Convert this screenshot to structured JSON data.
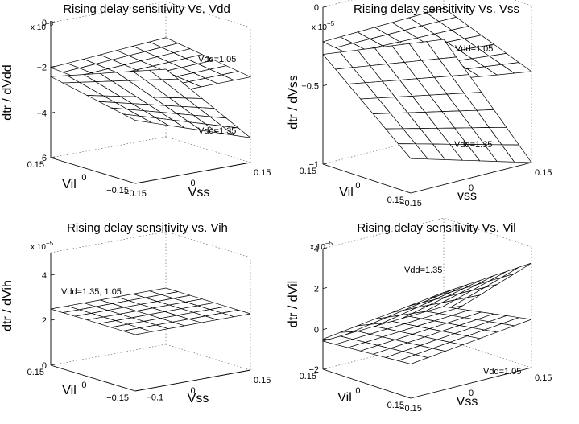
{
  "chart_data": [
    {
      "type": "surface",
      "title": "Rising delay sensitivity Vs. Vdd",
      "xlabel": "Vss",
      "ylabel": "Vil",
      "zlabel": "dtr / dVdd",
      "exponent_base": "x 10",
      "exponent_power": "−5",
      "xticks": [
        "−0.15",
        "0",
        "0.15"
      ],
      "yticks": [
        "0.15",
        "0",
        "−0.15"
      ],
      "zticks": [
        "0",
        "−2",
        "−4",
        "−6"
      ],
      "xlim": [
        -0.15,
        0.15
      ],
      "ylim": [
        -0.15,
        0.15
      ],
      "zlim": [
        -6,
        0
      ],
      "grid": true,
      "annotations": [
        "Vdd=1.05",
        "Vdd=1.35"
      ],
      "surfaces": [
        {
          "label": "Vdd=1.05",
          "corner_values": {
            "vss_lo_vil_hi": -2.0,
            "vss_hi_vil_hi": -1.6,
            "vss_lo_vil_lo": -2.3,
            "vss_hi_vil_lo": -2.2
          }
        },
        {
          "label": "Vdd=1.35",
          "corner_values": {
            "vss_lo_vil_hi": -2.4,
            "vss_hi_vil_hi": -3.0,
            "vss_lo_vil_lo": -3.2,
            "vss_hi_vil_lo": -4.9
          }
        }
      ]
    },
    {
      "type": "surface",
      "title": "Rising delay sensitivity Vs. Vss",
      "xlabel": "vss",
      "ylabel": "Vil",
      "zlabel": "dtr / dVss",
      "exponent_base": "x 10",
      "exponent_power": "−5",
      "xticks": [
        "−0.15",
        "0",
        "0.15"
      ],
      "yticks": [
        "0.15",
        "0",
        "−0.15"
      ],
      "zticks": [
        "0",
        "−0.5",
        "−1"
      ],
      "xlim": [
        -0.15,
        0.15
      ],
      "ylim": [
        -0.15,
        0.15
      ],
      "zlim": [
        -1,
        0
      ],
      "grid": true,
      "annotations": [
        "Vdd=1.05",
        "Vdd=1.35"
      ],
      "surfaces": [
        {
          "label": "Vdd=1.05",
          "corner_values": {
            "vss_lo_vil_hi": -0.22,
            "vss_hi_vil_hi": -0.2,
            "vss_lo_vil_lo": -0.3,
            "vss_hi_vil_lo": -0.42
          }
        },
        {
          "label": "Vdd=1.35",
          "corner_values": {
            "vss_lo_vil_hi": -0.3,
            "vss_hi_vil_hi": -0.4,
            "vss_lo_vil_lo": -0.78,
            "vss_hi_vil_lo": -1.0
          }
        }
      ]
    },
    {
      "type": "surface",
      "title": "Rising delay sensitivity vs. Vih",
      "xlabel": "Vss",
      "ylabel": "Vil",
      "zlabel": "dtr / dVih",
      "exponent_base": "x 10",
      "exponent_power": "−5",
      "xticks": [
        "−0.1",
        "0",
        "0.15"
      ],
      "yticks": [
        "0.15",
        "0",
        "−0.15"
      ],
      "zticks": [
        "4",
        "2",
        "0"
      ],
      "xlim": [
        -0.15,
        0.15
      ],
      "ylim": [
        -0.15,
        0.15
      ],
      "zlim": [
        0,
        5
      ],
      "grid": true,
      "annotations": [
        "Vdd=1.35, 1.05"
      ],
      "surfaces": [
        {
          "label": "Vdd=1.35, 1.05",
          "corner_values": {
            "vss_lo_vil_hi": 2.5,
            "vss_hi_vil_hi": 2.5,
            "vss_lo_vil_lo": 2.5,
            "vss_hi_vil_lo": 2.5
          }
        }
      ]
    },
    {
      "type": "surface",
      "title": "Rising delay sensitivity Vs. Vil",
      "xlabel": "Vss",
      "ylabel": "Vil",
      "zlabel": "dtr / dVil",
      "exponent_base": "x 10",
      "exponent_power": "−5",
      "xticks": [
        "−0.15",
        "0",
        "0.15"
      ],
      "yticks": [
        "0.15",
        "0",
        "−0.15"
      ],
      "zticks": [
        "4",
        "2",
        "0",
        "−2"
      ],
      "xlim": [
        -0.15,
        0.15
      ],
      "ylim": [
        -0.15,
        0.15
      ],
      "zlim": [
        -2,
        4
      ],
      "grid": true,
      "annotations": [
        "Vdd=1.35",
        "Vdd=1.05"
      ],
      "surfaces": [
        {
          "label": "Vdd=1.35",
          "corner_values": {
            "vss_lo_vil_hi": -0.5,
            "vss_hi_vil_hi": 0.3,
            "vss_lo_vil_lo": 1.0,
            "vss_hi_vil_lo": 3.2
          }
        },
        {
          "label": "Vdd=1.05",
          "corner_values": {
            "vss_lo_vil_hi": -0.6,
            "vss_hi_vil_hi": -0.4,
            "vss_lo_vil_lo": -0.3,
            "vss_hi_vil_lo": 0.4
          }
        }
      ]
    }
  ]
}
